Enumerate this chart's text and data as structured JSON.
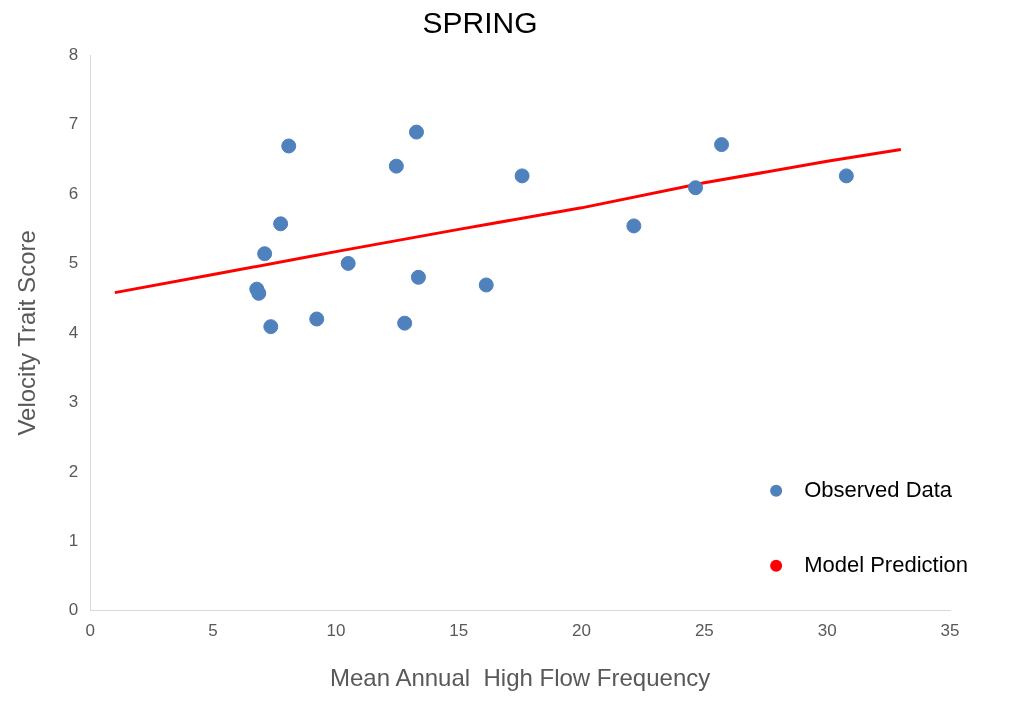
{
  "chart_data": {
    "type": "scatter",
    "title": "SPRING",
    "xlabel": "Mean Annual  High Flow Frequency",
    "ylabel": "Velocity Trait Score",
    "series": [
      {
        "name": "Observed Data",
        "color": "#4f81bd",
        "marker": "circle",
        "x": [
          6.78,
          6.86,
          7.35,
          7.1,
          7.75,
          8.08,
          9.22,
          10.5,
          12.46,
          12.8,
          13.28,
          13.36,
          16.12,
          17.58,
          22.13,
          24.64,
          25.7,
          30.78
        ],
        "values": [
          4.63,
          4.57,
          4.09,
          5.14,
          5.57,
          6.69,
          4.2,
          5.0,
          6.4,
          4.14,
          6.89,
          4.8,
          4.69,
          6.26,
          5.54,
          6.09,
          6.71,
          6.26
        ]
      },
      {
        "name": "Model Prediction",
        "type": "line",
        "color": "#ff0000",
        "marker": "none",
        "x": [
          1,
          5,
          10,
          15,
          20,
          25,
          30,
          33
        ],
        "values": [
          4.58,
          4.84,
          5.17,
          5.49,
          5.8,
          6.16,
          6.47,
          6.64
        ]
      }
    ],
    "xlim": [
      0,
      35
    ],
    "xticks": [
      0,
      5,
      10,
      15,
      20,
      25,
      30,
      35
    ],
    "ylim": [
      0,
      8
    ],
    "yticks": [
      0,
      1,
      2,
      3,
      4,
      5,
      6,
      7,
      8
    ],
    "grid": false,
    "legend": "bottom right"
  }
}
